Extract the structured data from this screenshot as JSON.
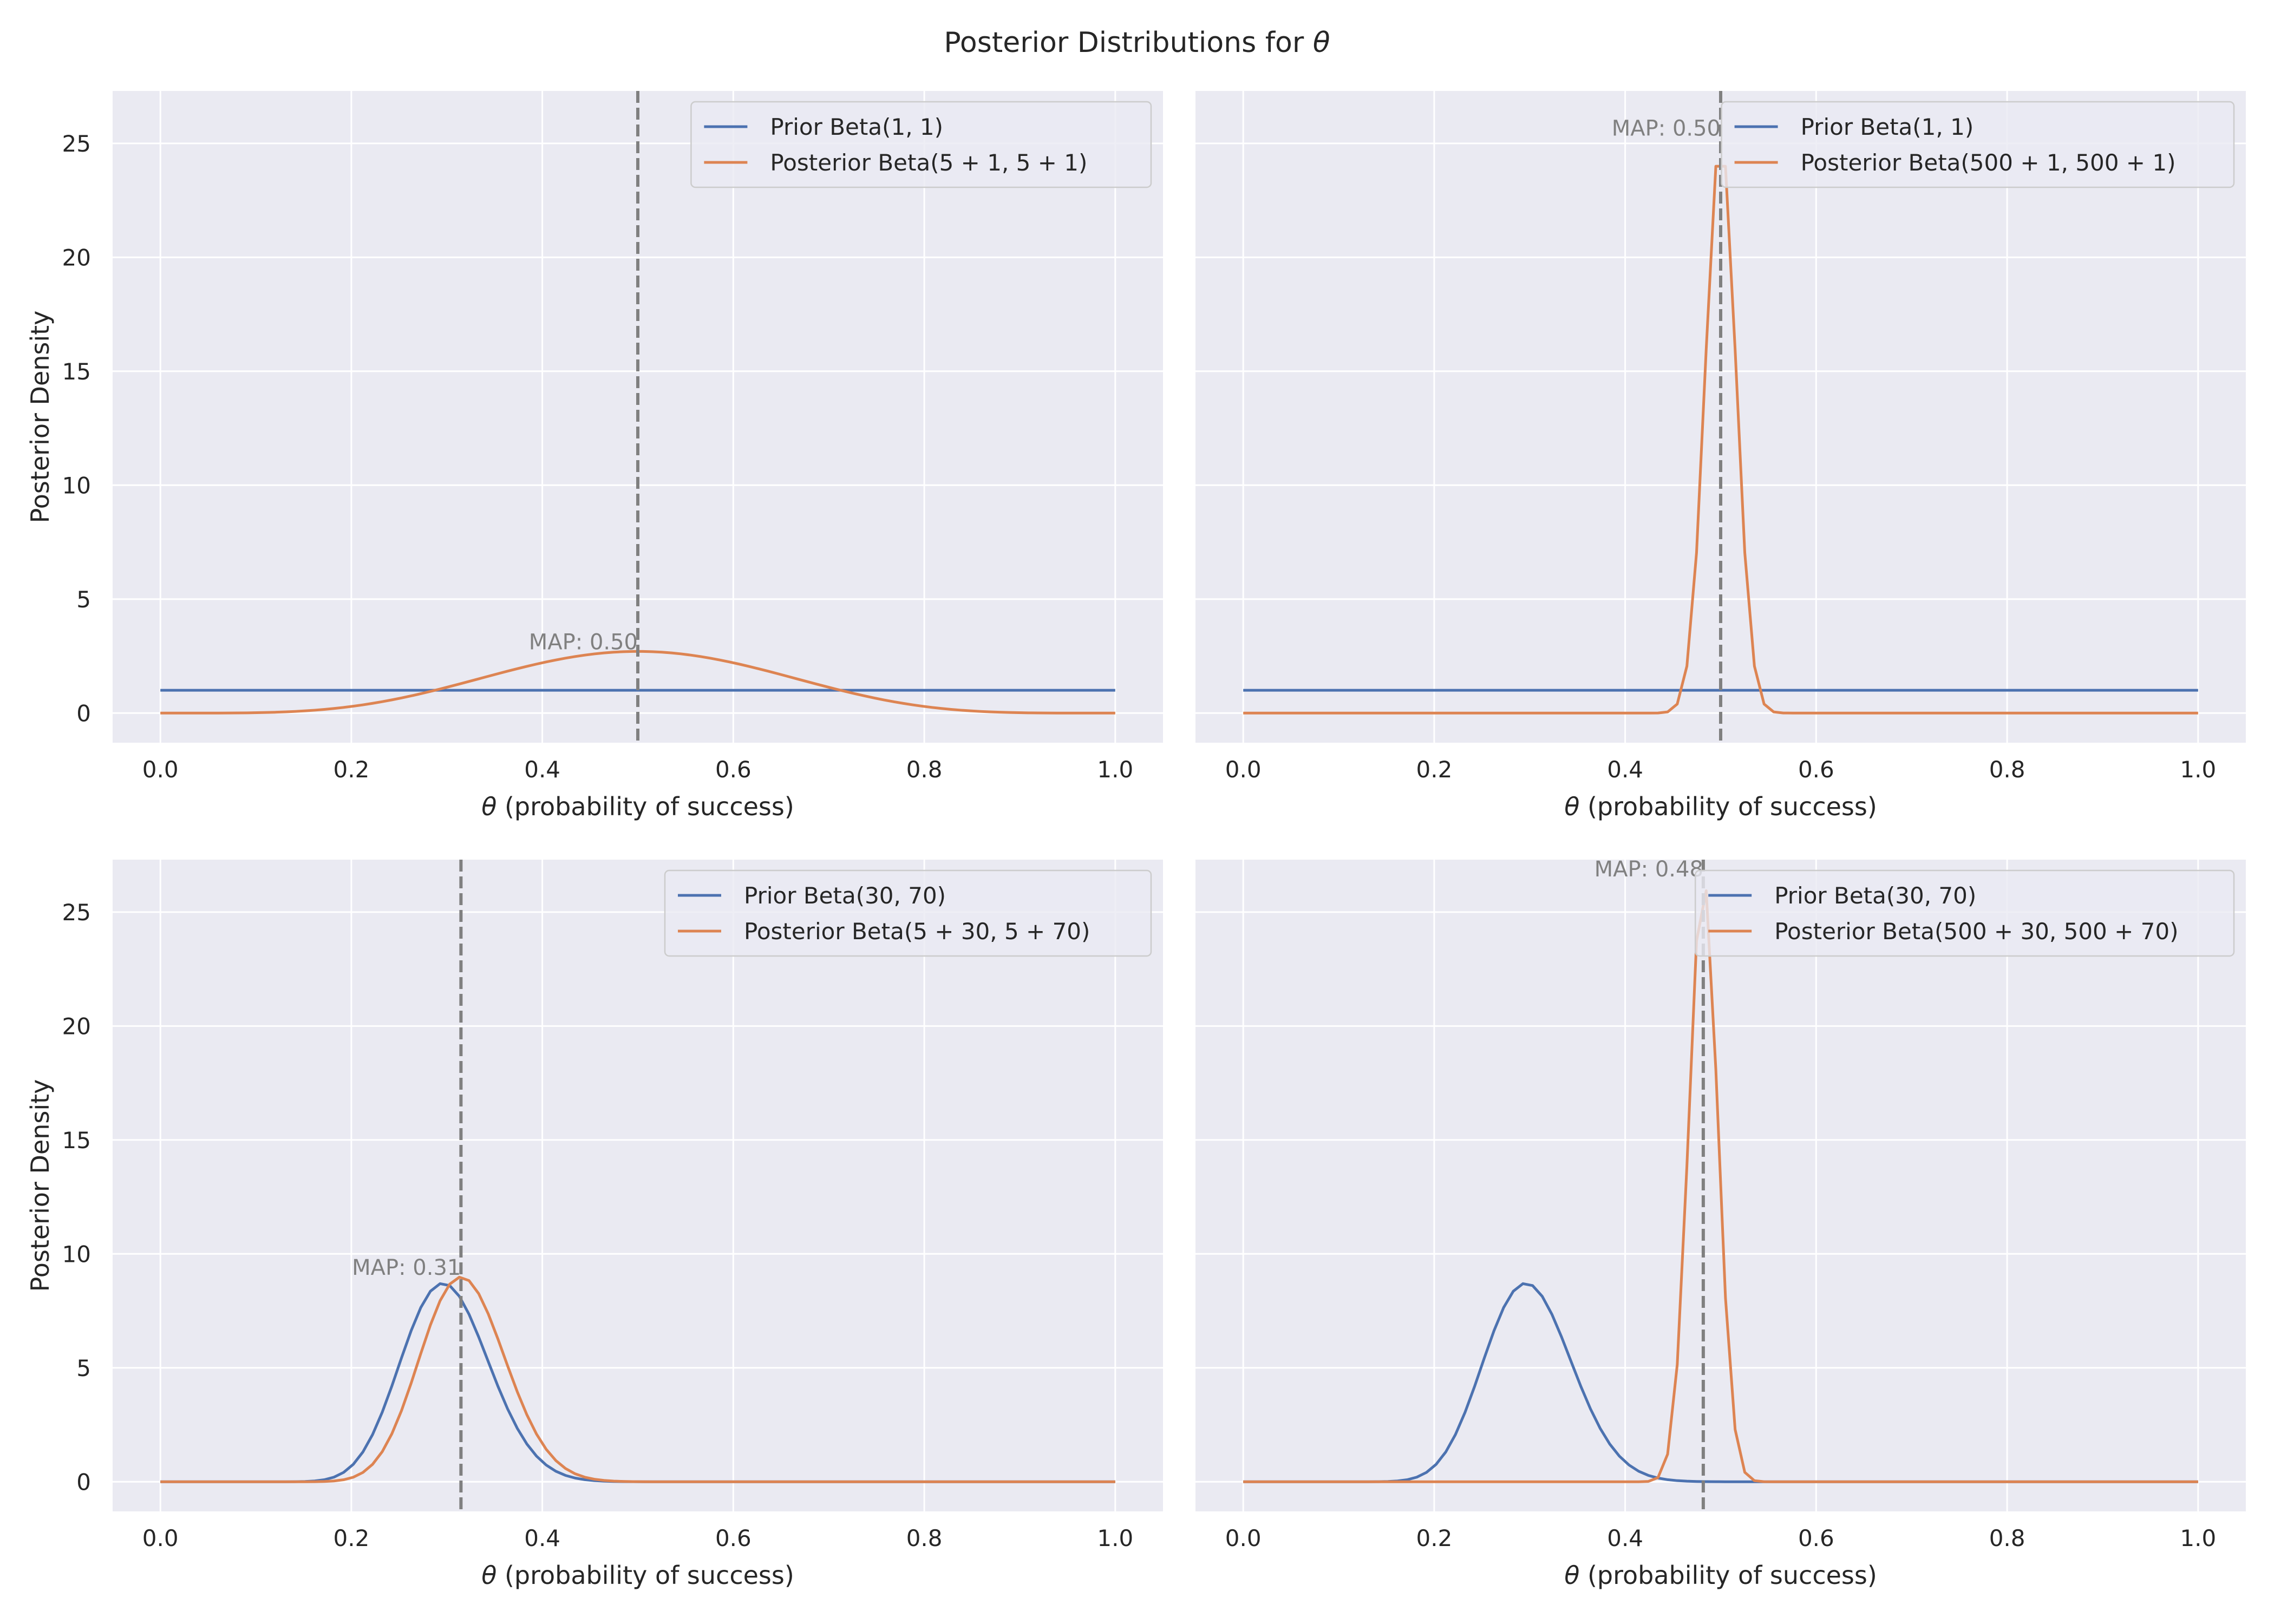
{
  "figure_title_prefix": "Posterior Distributions for ",
  "figure_title_symbol": "θ",
  "xaxis_label_symbol": "θ",
  "xaxis_label_text": " (probability of success)",
  "yaxis_label": "Posterior Density",
  "colors": {
    "prior": "#4c72b0",
    "posterior": "#dd8452",
    "map_line": "#808080",
    "panel_bg": "#eaeaf2",
    "grid": "#ffffff"
  },
  "chart_data": [
    {
      "type": "line",
      "title": "",
      "xlabel": "θ (probability of success)",
      "ylabel": "Posterior Density",
      "xlim": [
        -0.05,
        1.05
      ],
      "ylim": [
        -1.3,
        27.3
      ],
      "xticks": [
        0.0,
        0.2,
        0.4,
        0.6,
        0.8,
        1.0
      ],
      "xtick_labels": [
        "0.0",
        "0.2",
        "0.4",
        "0.6",
        "0.8",
        "1.0"
      ],
      "yticks": [
        0,
        5,
        10,
        15,
        20,
        25
      ],
      "ytick_labels": [
        "0",
        "5",
        "10",
        "15",
        "20",
        "25"
      ],
      "grid": true,
      "legend_position": "top-right",
      "prior": {
        "name": "Prior Beta(1, 1)",
        "alpha": 1,
        "beta": 1
      },
      "posterior": {
        "name": "Posterior Beta(5 + 1, 5 + 1)",
        "alpha": 6,
        "beta": 6
      },
      "map": {
        "value": 0.5,
        "label": "MAP: 0.50"
      }
    },
    {
      "type": "line",
      "title": "",
      "xlabel": "θ (probability of success)",
      "ylabel": "",
      "xlim": [
        -0.05,
        1.05
      ],
      "ylim": [
        -1.3,
        27.3
      ],
      "xticks": [
        0.0,
        0.2,
        0.4,
        0.6,
        0.8,
        1.0
      ],
      "xtick_labels": [
        "0.0",
        "0.2",
        "0.4",
        "0.6",
        "0.8",
        "1.0"
      ],
      "yticks": [
        0,
        5,
        10,
        15,
        20,
        25
      ],
      "ytick_labels": [],
      "grid": true,
      "legend_position": "top-right",
      "prior": {
        "name": "Prior Beta(1, 1)",
        "alpha": 1,
        "beta": 1
      },
      "posterior": {
        "name": "Posterior Beta(500 + 1, 500 + 1)",
        "alpha": 501,
        "beta": 501
      },
      "map": {
        "value": 0.5,
        "label": "MAP: 0.50"
      }
    },
    {
      "type": "line",
      "title": "",
      "xlabel": "θ (probability of success)",
      "ylabel": "Posterior Density",
      "xlim": [
        -0.05,
        1.05
      ],
      "ylim": [
        -1.3,
        27.3
      ],
      "xticks": [
        0.0,
        0.2,
        0.4,
        0.6,
        0.8,
        1.0
      ],
      "xtick_labels": [
        "0.0",
        "0.2",
        "0.4",
        "0.6",
        "0.8",
        "1.0"
      ],
      "yticks": [
        0,
        5,
        10,
        15,
        20,
        25
      ],
      "ytick_labels": [
        "0",
        "5",
        "10",
        "15",
        "20",
        "25"
      ],
      "grid": true,
      "legend_position": "top-right",
      "prior": {
        "name": "Prior Beta(30, 70)",
        "alpha": 30,
        "beta": 70
      },
      "posterior": {
        "name": "Posterior Beta(5 + 30, 5 + 70)",
        "alpha": 35,
        "beta": 75
      },
      "map": {
        "value": 0.3148,
        "label": "MAP: 0.31"
      }
    },
    {
      "type": "line",
      "title": "",
      "xlabel": "θ (probability of success)",
      "ylabel": "",
      "xlim": [
        -0.05,
        1.05
      ],
      "ylim": [
        -1.3,
        27.3
      ],
      "xticks": [
        0.0,
        0.2,
        0.4,
        0.6,
        0.8,
        1.0
      ],
      "xtick_labels": [
        "0.0",
        "0.2",
        "0.4",
        "0.6",
        "0.8",
        "1.0"
      ],
      "yticks": [
        0,
        5,
        10,
        15,
        20,
        25
      ],
      "ytick_labels": [],
      "grid": true,
      "legend_position": "top-right",
      "prior": {
        "name": "Prior Beta(30, 70)",
        "alpha": 30,
        "beta": 70
      },
      "posterior": {
        "name": "Posterior Beta(500 + 30, 500 + 70)",
        "alpha": 530,
        "beta": 570
      },
      "map": {
        "value": 0.4818,
        "label": "MAP: 0.48"
      }
    }
  ]
}
